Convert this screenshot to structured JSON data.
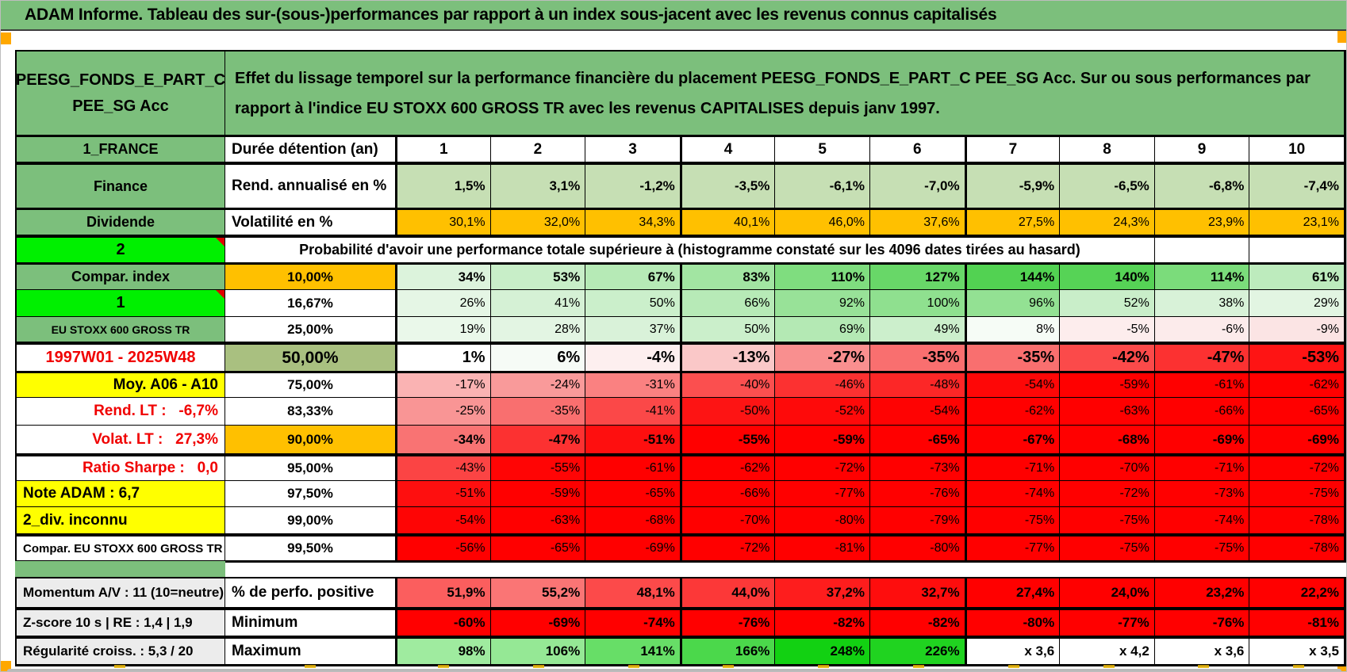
{
  "title": "ADAM Informe. Tableau des sur-(sous-)performances par rapport à un index sous-jacent avec les revenus connus capitalisés",
  "fund": {
    "line1": "PEESG_FONDS_E_PART_C",
    "line2": "PEE_SG Acc",
    "description": "Effet du lissage temporel sur la performance financière du placement PEESG_FONDS_E_PART_C PEE_SG Acc. Sur ou sous performances par rapport à l'indice EU STOXX 600 GROSS TR avec les revenus CAPITALISES depuis janv 1997."
  },
  "colors": {
    "green": "#7CBF7C",
    "bright_green": "#00F000",
    "light_green": "#C6DFB4",
    "orange": "#FFC000",
    "yellow": "#FFFF00",
    "olive": "#A9C080",
    "gray": "#ECECEC",
    "red_text": "#F00000",
    "red_cell": "#FF0000",
    "marker_orange": "#FFA800"
  },
  "top_rows": [
    {
      "id": "duration",
      "label": "1_FRANCE",
      "metric": "Durée détention (an)",
      "value_align": "center",
      "value_bg": "#FFFFFF",
      "values": [
        "1",
        "2",
        "3",
        "4",
        "5",
        "6",
        "7",
        "8",
        "9",
        "10"
      ]
    },
    {
      "id": "annualized",
      "label": "Finance",
      "metric": "Rend. annualisé en %",
      "value_bold": true,
      "value_bg": "#C6DFB4",
      "values": [
        "1,5%",
        "3,1%",
        "-1,2%",
        "-3,5%",
        "-6,1%",
        "-7,0%",
        "-5,9%",
        "-6,5%",
        "-6,8%",
        "-7,4%"
      ]
    },
    {
      "id": "volatility",
      "label": "Dividende",
      "metric": "Volatilité en %",
      "value_bg": "#FFC000",
      "values": [
        "30,1%",
        "32,0%",
        "34,3%",
        "40,1%",
        "46,0%",
        "37,6%",
        "27,5%",
        "24,3%",
        "23,9%",
        "23,1%"
      ]
    }
  ],
  "probability_header": {
    "label": "2",
    "text": "Probabilité d'avoir une performance totale supérieure à (histogramme constaté sur les 4096 dates tirées au hasard)"
  },
  "probability_rows": [
    {
      "id": "p10",
      "label": "Compar. index",
      "label_style": "green",
      "threshold": "10,00%",
      "threshold_style": "orange",
      "value_bold": true,
      "values": [
        "34%",
        "53%",
        "67%",
        "83%",
        "110%",
        "127%",
        "144%",
        "140%",
        "114%",
        "61%"
      ],
      "bgs": [
        "#DCF3DC",
        "#C8EEC8",
        "#B6EAB6",
        "#A2E5A2",
        "#7FDD7F",
        "#68D768",
        "#52D252",
        "#56D356",
        "#7BDC7B",
        "#BDEBBD"
      ]
    },
    {
      "id": "p16-67",
      "label": "1",
      "label_style": "bright",
      "corner": true,
      "threshold": "16,67%",
      "threshold_style": "plain",
      "values": [
        "26%",
        "41%",
        "50%",
        "66%",
        "92%",
        "100%",
        "96%",
        "52%",
        "38%",
        "29%"
      ],
      "bgs": [
        "#E5F6E5",
        "#D5F1D5",
        "#CBEFCB",
        "#B7EAB7",
        "#98E298",
        "#8FE08F",
        "#93E193",
        "#C9EEC9",
        "#D8F2D8",
        "#E2F5E2"
      ]
    },
    {
      "id": "p25",
      "label": "EU STOXX 600 GROSS TR",
      "label_style": "green-sm",
      "threshold": "25,00%",
      "threshold_style": "plain",
      "values": [
        "19%",
        "28%",
        "37%",
        "50%",
        "69%",
        "49%",
        "8%",
        "-5%",
        "-6%",
        "-9%"
      ],
      "bgs": [
        "#EAF8EA",
        "#E3F5E3",
        "#D9F2D9",
        "#CBEFCB",
        "#B4E9B4",
        "#CCEFCC",
        "#F6FCF6",
        "#FDEDED",
        "#FCEBEB",
        "#FBE4E4"
      ]
    },
    {
      "id": "p50",
      "label": "1997W01 - 2025W48",
      "label_style": "red-center",
      "threshold": "50,00%",
      "threshold_style": "olive",
      "value_big": true,
      "values": [
        "1%",
        "6%",
        "-4%",
        "-13%",
        "-27%",
        "-35%",
        "-35%",
        "-42%",
        "-47%",
        "-53%"
      ],
      "bgs": [
        "#FFFFFF",
        "#F6FBF6",
        "#FDEFEF",
        "#FAC8C8",
        "#F98F8F",
        "#F96F6F",
        "#F96F6F",
        "#FB4A4A",
        "#FC3131",
        "#FE1414"
      ]
    },
    {
      "id": "p75",
      "label": "Moy. A06 - A10",
      "label_style": "yellow-right",
      "threshold": "75,00%",
      "threshold_style": "plain",
      "values": [
        "-17%",
        "-24%",
        "-31%",
        "-40%",
        "-46%",
        "-48%",
        "-54%",
        "-59%",
        "-61%",
        "-62%"
      ],
      "bgs": [
        "#FAB3B3",
        "#F99A9A",
        "#FA8181",
        "#FB4F4F",
        "#FC3131",
        "#FC2727",
        "#FE0707",
        "#FF0000",
        "#FF0000",
        "#FF0000"
      ]
    },
    {
      "id": "p83-33",
      "label": "Rend. LT :   -6,7%",
      "label_style": "red-right",
      "threshold": "83,33%",
      "threshold_style": "plain",
      "values": [
        "-25%",
        "-35%",
        "-41%",
        "-50%",
        "-52%",
        "-54%",
        "-62%",
        "-63%",
        "-66%",
        "-65%"
      ],
      "bgs": [
        "#F99595",
        "#F96F6F",
        "#FB4848",
        "#FD1414",
        "#FE0A0A",
        "#FE0303",
        "#FF0000",
        "#FF0000",
        "#FF0000",
        "#FF0000"
      ]
    },
    {
      "id": "p90",
      "label": "Volat. LT :   27,3%",
      "label_style": "red-right",
      "threshold": "90,00%",
      "threshold_style": "orange",
      "value_bold": true,
      "values": [
        "-34%",
        "-47%",
        "-51%",
        "-55%",
        "-59%",
        "-65%",
        "-67%",
        "-68%",
        "-69%",
        "-69%"
      ],
      "bgs": [
        "#F97373",
        "#FC3131",
        "#FE0F0F",
        "#FF0000",
        "#FF0000",
        "#FF0000",
        "#FF0000",
        "#FF0000",
        "#FF0000",
        "#FF0000"
      ]
    },
    {
      "id": "p95",
      "label": "Ratio Sharpe :   0,0",
      "label_style": "red-right",
      "threshold": "95,00%",
      "threshold_style": "plain",
      "values": [
        "-43%",
        "-55%",
        "-61%",
        "-62%",
        "-72%",
        "-73%",
        "-71%",
        "-70%",
        "-71%",
        "-72%"
      ],
      "bgs": [
        "#FB4444",
        "#FF0505",
        "#FF0000",
        "#FF0000",
        "#FF0000",
        "#FF0000",
        "#FF0000",
        "#FF0000",
        "#FF0000",
        "#FF0000"
      ]
    },
    {
      "id": "p97-5",
      "label": "Note ADAM : 6,7",
      "label_style": "yellow-left",
      "threshold": "97,50%",
      "threshold_style": "plain",
      "values": [
        "-51%",
        "-59%",
        "-65%",
        "-66%",
        "-77%",
        "-76%",
        "-74%",
        "-72%",
        "-73%",
        "-75%"
      ],
      "bgs": [
        "#FE0F0F",
        "#FF0000",
        "#FF0000",
        "#FF0000",
        "#FF0000",
        "#FF0000",
        "#FF0000",
        "#FF0000",
        "#FF0000",
        "#FF0000"
      ]
    },
    {
      "id": "p99",
      "label": "2_div. inconnu",
      "label_style": "yellow-left",
      "threshold": "99,00%",
      "threshold_style": "plain",
      "values": [
        "-54%",
        "-63%",
        "-68%",
        "-70%",
        "-80%",
        "-79%",
        "-75%",
        "-75%",
        "-74%",
        "-78%"
      ],
      "bgs": [
        "#FE0505",
        "#FF0000",
        "#FF0000",
        "#FF0000",
        "#FF0000",
        "#FF0000",
        "#FF0000",
        "#FF0000",
        "#FF0000",
        "#FF0000"
      ]
    },
    {
      "id": "p99-5",
      "label": "Compar. EU STOXX 600 GROSS TR",
      "label_style": "plain-left-sm",
      "threshold": "99,50%",
      "threshold_style": "plain",
      "values": [
        "-56%",
        "-65%",
        "-69%",
        "-72%",
        "-81%",
        "-80%",
        "-77%",
        "-75%",
        "-75%",
        "-78%"
      ],
      "bgs": [
        "#FF0000",
        "#FF0000",
        "#FF0000",
        "#FF0000",
        "#FF0000",
        "#FF0000",
        "#FF0000",
        "#FF0000",
        "#FF0000",
        "#FF0000"
      ]
    }
  ],
  "stats_rows": [
    {
      "id": "perf-positive",
      "label": "Momentum A/V : 11 (10=neutre)",
      "metric": "% de perfo. positive",
      "values": [
        "51,9%",
        "55,2%",
        "48,1%",
        "44,0%",
        "37,2%",
        "32,7%",
        "27,4%",
        "24,0%",
        "23,2%",
        "22,2%"
      ],
      "bgs": [
        "#FB5E5E",
        "#FA7575",
        "#FC4A4A",
        "#FC3838",
        "#FE1D1D",
        "#FE0D0D",
        "#FF0000",
        "#FF0000",
        "#FF0000",
        "#FF0000"
      ]
    },
    {
      "id": "minimum",
      "label": "Z-score 10 s | RE : 1,4 | 1,9",
      "metric": "Minimum",
      "values": [
        "-60%",
        "-69%",
        "-74%",
        "-76%",
        "-82%",
        "-82%",
        "-80%",
        "-77%",
        "-76%",
        "-81%"
      ],
      "bgs": [
        "#FF0000",
        "#FF0000",
        "#FF0000",
        "#FF0000",
        "#FF0000",
        "#FF0000",
        "#FF0000",
        "#FF0000",
        "#FF0000",
        "#FF0000"
      ]
    },
    {
      "id": "maximum",
      "label": "Régularité croiss. : 5,3 / 20",
      "metric": "Maximum",
      "values": [
        "98%",
        "106%",
        "141%",
        "166%",
        "248%",
        "226%",
        "x 3,6",
        "x 4,2",
        "x 3,6",
        "x 3,5"
      ],
      "bgs": [
        "#9FEB9F",
        "#95E895",
        "#67DE67",
        "#4BD84B",
        "#12D112",
        "#20D320",
        "#FFFFFF",
        "#FFFFFF",
        "#FFFFFF",
        "#FFFFFF"
      ]
    }
  ]
}
